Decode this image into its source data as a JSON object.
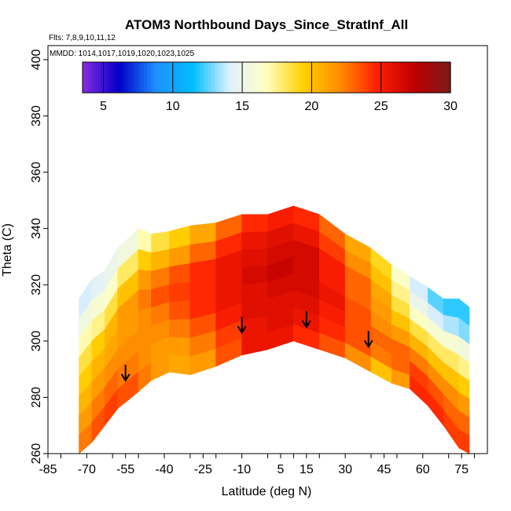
{
  "chart_data": {
    "type": "heatmap",
    "title": "ATOM3 Northbound Days_Since_StratInf_All",
    "info_lines": [
      "Flts: 7,8,9,10,11,12",
      "MMDD: 1014,1017,1019,1020,1023,1025"
    ],
    "xlabel": "Latitude (deg N)",
    "ylabel": "Theta (C)",
    "xlim": [
      -85,
      85
    ],
    "ylim": [
      260,
      405
    ],
    "x_ticks": [
      -85,
      -70,
      -55,
      -40,
      -25,
      -10,
      5,
      15,
      30,
      45,
      60,
      75
    ],
    "y_ticks": [
      260,
      280,
      300,
      320,
      340,
      360,
      380,
      400
    ],
    "colorbar": {
      "range": [
        3.5,
        30
      ],
      "ticks": [
        5,
        10,
        15,
        20,
        25,
        30
      ],
      "colors": [
        "#8a2be2",
        "#0000c8",
        "#1e90ff",
        "#00bfff",
        "#e0f0ff",
        "#ffffc0",
        "#ffd000",
        "#ff8c00",
        "#ff2000",
        "#c00000",
        "#7a1a1a"
      ]
    },
    "arrows": [
      {
        "lat": -55,
        "theta": 286
      },
      {
        "lat": -10,
        "theta": 303
      },
      {
        "lat": 15,
        "theta": 305
      },
      {
        "lat": 39,
        "theta": 298
      }
    ],
    "field": {
      "profile": [
        {
          "lat": -73,
          "bottom": 260,
          "top": 315
        },
        {
          "lat": -68,
          "bottom": 264,
          "top": 322
        },
        {
          "lat": -63,
          "bottom": 270,
          "top": 325
        },
        {
          "lat": -58,
          "bottom": 276,
          "top": 333
        },
        {
          "lat": -50,
          "bottom": 282,
          "top": 340
        },
        {
          "lat": -45,
          "bottom": 286,
          "top": 338
        },
        {
          "lat": -38,
          "bottom": 289,
          "top": 339
        },
        {
          "lat": -30,
          "bottom": 288,
          "top": 341
        },
        {
          "lat": -20,
          "bottom": 291,
          "top": 342
        },
        {
          "lat": -10,
          "bottom": 295,
          "top": 345
        },
        {
          "lat": 0,
          "bottom": 297,
          "top": 345
        },
        {
          "lat": 10,
          "bottom": 300,
          "top": 348
        },
        {
          "lat": 20,
          "bottom": 297,
          "top": 345
        },
        {
          "lat": 30,
          "bottom": 294,
          "top": 338
        },
        {
          "lat": 40,
          "bottom": 289,
          "top": 333
        },
        {
          "lat": 48,
          "bottom": 285,
          "top": 327
        },
        {
          "lat": 55,
          "bottom": 283,
          "top": 323
        },
        {
          "lat": 62,
          "bottom": 277,
          "top": 319
        },
        {
          "lat": 68,
          "bottom": 270,
          "top": 315
        },
        {
          "lat": 74,
          "bottom": 262,
          "top": 315
        },
        {
          "lat": 78,
          "bottom": 260,
          "top": 312
        }
      ],
      "values": [
        [
          22,
          21,
          20,
          19,
          18,
          17,
          15,
          14
        ],
        [
          23,
          22,
          21,
          20,
          19,
          17,
          16,
          14
        ],
        [
          24,
          23,
          22,
          21,
          20,
          18,
          16,
          15
        ],
        [
          24,
          23,
          22,
          21,
          21,
          19,
          17,
          15
        ],
        [
          23,
          22,
          22,
          22,
          22,
          21,
          19,
          16
        ],
        [
          22,
          22,
          22,
          22,
          23,
          22,
          20,
          18
        ],
        [
          21,
          21,
          22,
          23,
          24,
          23,
          21,
          19
        ],
        [
          21,
          22,
          23,
          24,
          24,
          24,
          22,
          20
        ],
        [
          22,
          23,
          24,
          25,
          25,
          25,
          24,
          22
        ],
        [
          25,
          25,
          26,
          26,
          26,
          26,
          25,
          24
        ],
        [
          26,
          26,
          26,
          26,
          27,
          26,
          26,
          25
        ],
        [
          25,
          26,
          26,
          27,
          27,
          27,
          26,
          25
        ],
        [
          24,
          25,
          26,
          26,
          26,
          26,
          25,
          24
        ],
        [
          23,
          24,
          24,
          25,
          24,
          24,
          23,
          22
        ],
        [
          21,
          23,
          23,
          22,
          22,
          22,
          21,
          20
        ],
        [
          19,
          22,
          23,
          22,
          21,
          20,
          19,
          18
        ],
        [
          24,
          24,
          23,
          21,
          19,
          17,
          16,
          15
        ],
        [
          25,
          24,
          22,
          20,
          18,
          16,
          14,
          13
        ],
        [
          24,
          23,
          22,
          20,
          18,
          16,
          14,
          12
        ],
        [
          24,
          23,
          22,
          20,
          18,
          16,
          13,
          12
        ],
        [
          24,
          23,
          21,
          19,
          17,
          15,
          13,
          12
        ]
      ]
    }
  }
}
